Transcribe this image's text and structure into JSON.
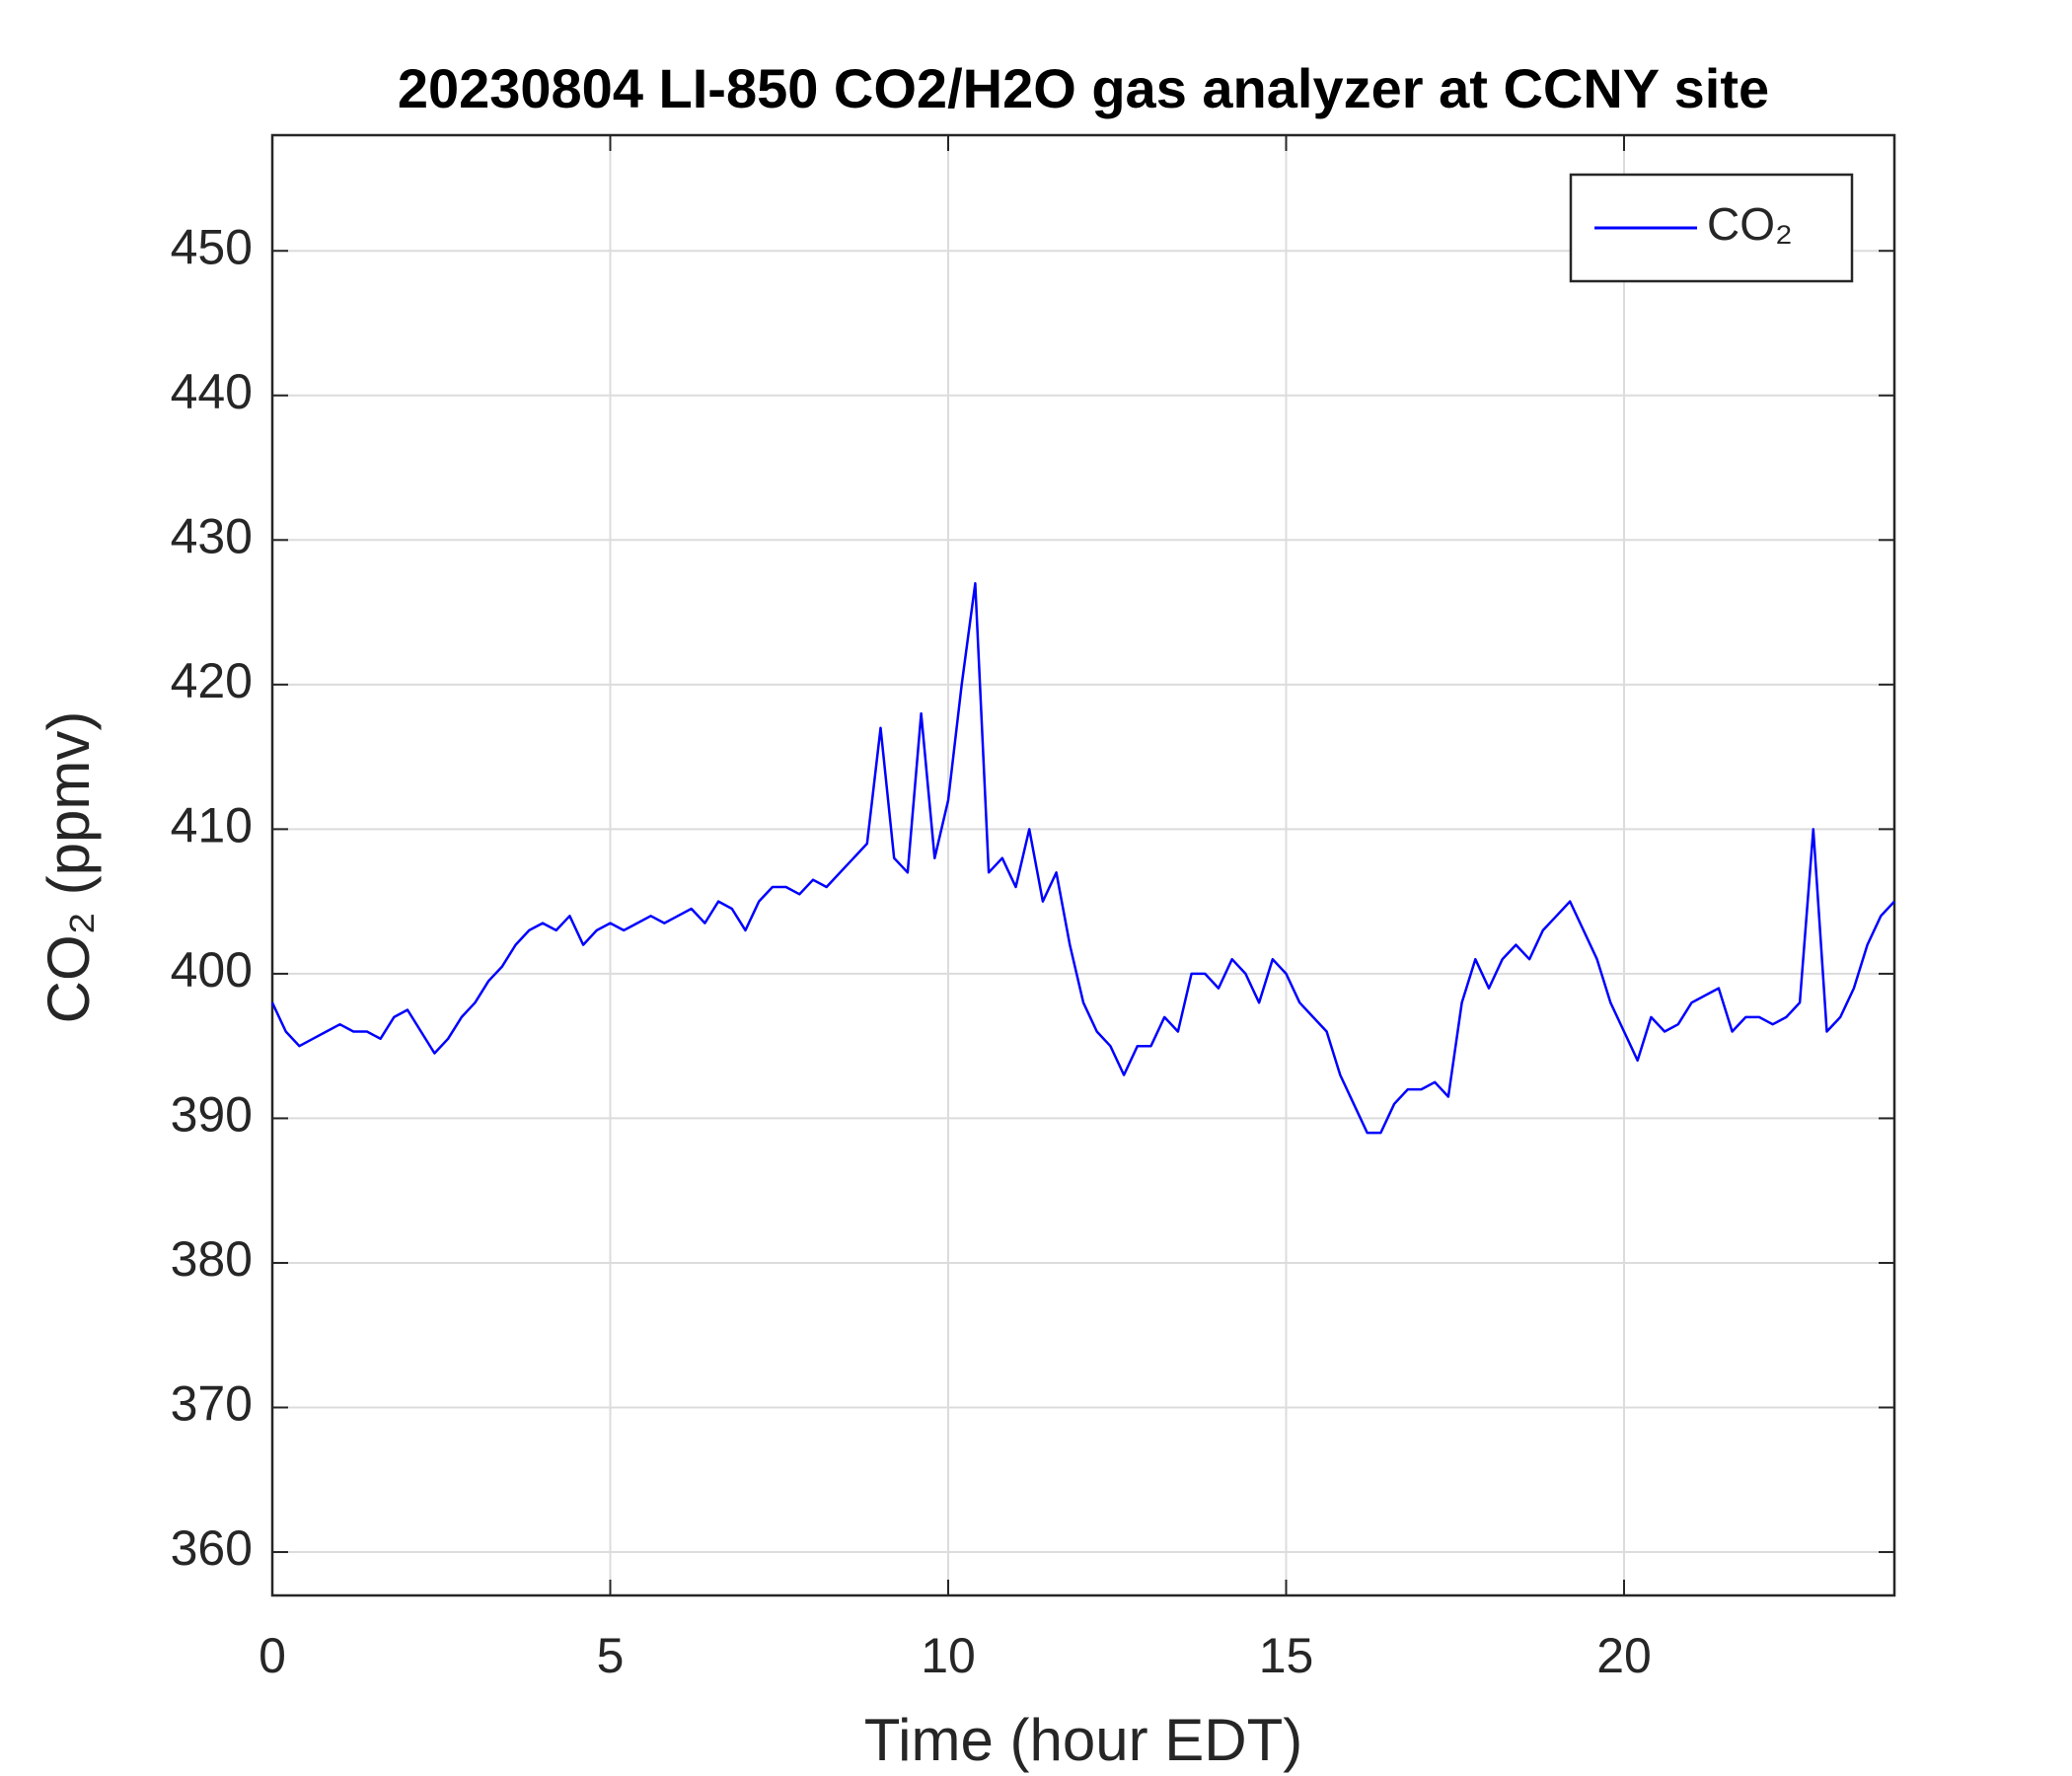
{
  "chart_data": {
    "type": "line",
    "title": "20230804 LI-850 CO2/H2O gas analyzer at CCNY site",
    "xlabel": "Time (hour EDT)",
    "ylabel": "CO₂ (ppmv)",
    "x": [
      0,
      0.2,
      0.4,
      0.6,
      0.8,
      1,
      1.2,
      1.4,
      1.6,
      1.8,
      2,
      2.2,
      2.4,
      2.6,
      2.8,
      3,
      3.2,
      3.4,
      3.6,
      3.8,
      4,
      4.2,
      4.4,
      4.6,
      4.8,
      5,
      5.2,
      5.4,
      5.6,
      5.8,
      6,
      6.2,
      6.4,
      6.6,
      6.8,
      7,
      7.2,
      7.4,
      7.6,
      7.8,
      8,
      8.2,
      8.4,
      8.6,
      8.8,
      9,
      9.2,
      9.4,
      9.6,
      9.8,
      10,
      10.2,
      10.4,
      10.6,
      10.8,
      11,
      11.2,
      11.4,
      11.6,
      11.8,
      12,
      12.2,
      12.4,
      12.6,
      12.8,
      13,
      13.2,
      13.4,
      13.6,
      13.8,
      14,
      14.2,
      14.4,
      14.6,
      14.8,
      15,
      15.2,
      15.4,
      15.6,
      15.8,
      16,
      16.2,
      16.4,
      16.6,
      16.8,
      17,
      17.2,
      17.4,
      17.6,
      17.8,
      18,
      18.2,
      18.4,
      18.6,
      18.8,
      19,
      19.2,
      19.4,
      19.6,
      19.8,
      20,
      20.2,
      20.4,
      20.6,
      20.8,
      21,
      21.2,
      21.4,
      21.6,
      21.8,
      22,
      22.2,
      22.4,
      22.6,
      22.8,
      23,
      23.2,
      23.4,
      23.6,
      23.8,
      24
    ],
    "series": [
      {
        "name": "CO₂",
        "color": "#0000ff",
        "values": [
          398,
          396,
          395,
          395.5,
          396,
          396.5,
          396,
          396,
          395.5,
          397,
          397.5,
          396,
          394.5,
          395.5,
          397,
          398,
          399.5,
          400.5,
          402,
          403,
          403.5,
          403,
          404,
          402,
          403,
          403.5,
          403,
          403.5,
          404,
          403.5,
          404,
          404.5,
          403.5,
          405,
          404.5,
          403,
          405,
          406,
          406,
          405.5,
          406.5,
          406,
          407,
          408,
          409,
          417,
          408,
          407,
          418,
          408,
          412,
          420,
          427,
          407,
          408,
          406,
          410,
          405,
          407,
          402,
          398,
          396,
          395,
          393,
          395,
          395,
          397,
          396,
          400,
          400,
          399,
          401,
          400,
          398,
          401,
          400,
          398,
          397,
          396,
          393,
          391,
          389,
          389,
          391,
          392,
          392,
          392.5,
          391.5,
          398,
          401,
          399,
          401,
          402,
          401,
          403,
          404,
          405,
          403,
          401,
          398,
          396,
          394,
          397,
          396,
          396.5,
          398,
          398.5,
          399,
          396,
          397,
          397,
          396.5,
          397,
          398,
          410,
          396,
          397,
          399,
          402,
          404,
          405
        ]
      }
    ],
    "xlim": [
      0,
      24
    ],
    "xticks": [
      0,
      5,
      10,
      15,
      20
    ],
    "ylim": [
      357,
      458
    ],
    "yticks": [
      360,
      370,
      380,
      390,
      400,
      410,
      420,
      430,
      440,
      450
    ],
    "grid": true,
    "legend": "upper right"
  }
}
